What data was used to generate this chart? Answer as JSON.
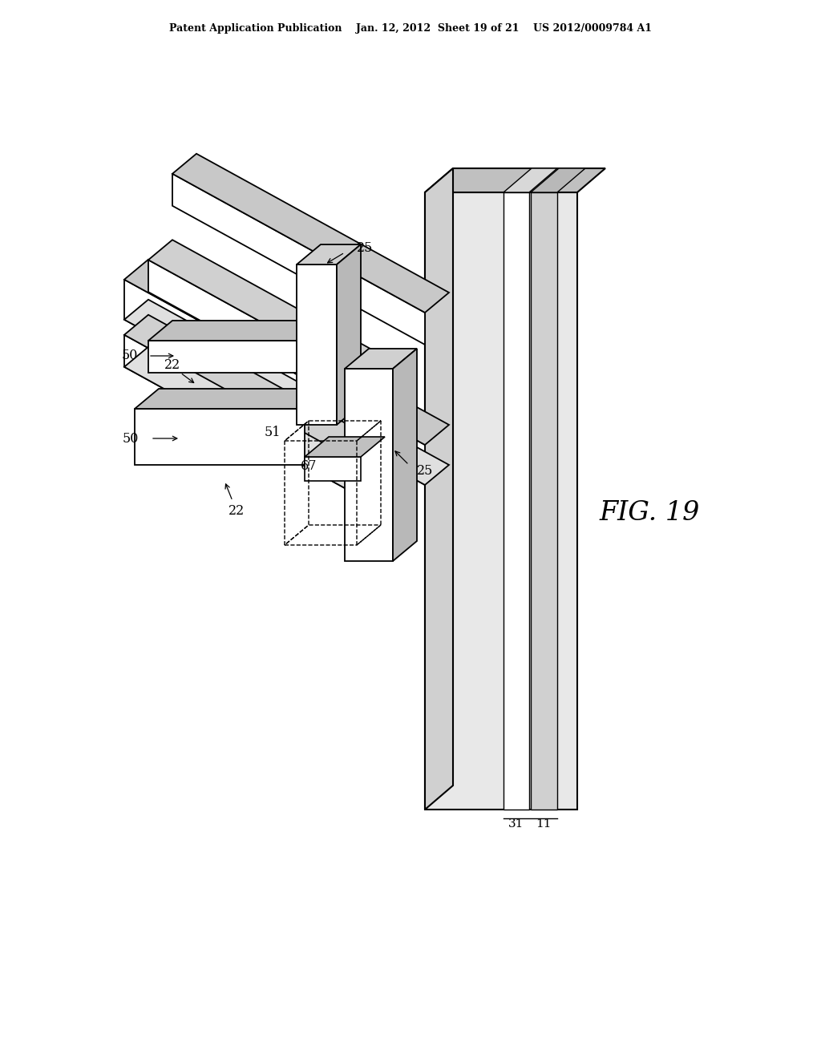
{
  "bg_color": "#ffffff",
  "lc": "#000000",
  "header": "Patent Application Publication    Jan. 12, 2012  Sheet 19 of 21    US 2012/0009784 A1",
  "fig_label": "FIG. 19",
  "labels": {
    "50a": "50",
    "50b": "50",
    "51": "51",
    "25a": "25",
    "25b": "25",
    "22a": "22",
    "22b": "22",
    "67": "67",
    "31": "31",
    "11": "11"
  }
}
